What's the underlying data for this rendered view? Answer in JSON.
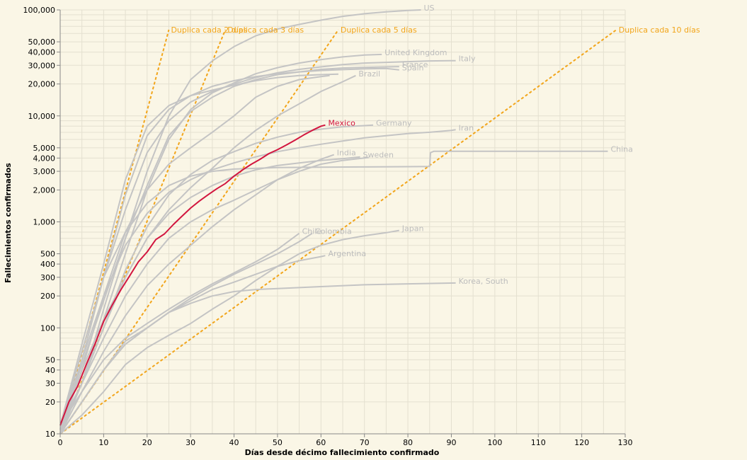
{
  "chart_data": {
    "type": "line",
    "xlabel": "Días desde décimo fallecimiento confirmado",
    "ylabel": "Fallecimientos confirmados",
    "x_scale": "linear",
    "y_scale": "log",
    "xlim": [
      0,
      130
    ],
    "ylim": [
      10,
      100000
    ],
    "x_ticks": [
      0,
      10,
      20,
      30,
      40,
      50,
      60,
      70,
      80,
      90,
      100,
      110,
      120,
      130
    ],
    "x_tick_labels": [
      "0",
      "10",
      "20",
      "30",
      "40",
      "50",
      "60",
      "70",
      "80",
      "90",
      "100",
      "110",
      "120",
      "130"
    ],
    "y_ticks": [
      10,
      20,
      30,
      40,
      50,
      100,
      200,
      300,
      400,
      500,
      1000,
      2000,
      3000,
      4000,
      5000,
      10000,
      20000,
      30000,
      40000,
      50000,
      100000
    ],
    "y_tick_labels": [
      "10",
      "20",
      "30",
      "40",
      "50",
      "100",
      "200",
      "300",
      "400",
      "500",
      "1,000",
      "2,000",
      "3,000",
      "4,000",
      "5,000",
      "10,000",
      "20,000",
      "30,000",
      "40,000",
      "50,000",
      "100,000"
    ],
    "grid": true,
    "colors": {
      "background": "#faf6e6",
      "gray_series": "#c4c4c4",
      "gray_label": "#bdbdbd",
      "highlight": "#d2163f",
      "reference": "#f2a51a",
      "grid": "#e4e0d0"
    },
    "reference_lines": [
      {
        "name": "Duplica cada 2 días",
        "x": [
          0,
          25
        ],
        "y": [
          10,
          65000
        ]
      },
      {
        "name": "Duplica cada 3 días",
        "x": [
          0,
          38
        ],
        "y": [
          10,
          65000
        ]
      },
      {
        "name": "Duplica cada 5 días",
        "x": [
          0,
          64
        ],
        "y": [
          10,
          65000
        ]
      },
      {
        "name": "Duplica cada 10 días",
        "x": [
          0,
          128
        ],
        "y": [
          10,
          65000
        ]
      }
    ],
    "series": [
      {
        "name": "US",
        "highlight": false,
        "x": [
          0,
          5,
          10,
          15,
          20,
          25,
          30,
          35,
          40,
          45,
          50,
          55,
          60,
          65,
          70,
          75,
          80,
          83
        ],
        "y": [
          11,
          30,
          150,
          700,
          3000,
          10000,
          22000,
          33000,
          45000,
          57000,
          66000,
          73000,
          80000,
          87000,
          92000,
          96000,
          99000,
          100000
        ]
      },
      {
        "name": "United Kingdom",
        "highlight": false,
        "x": [
          0,
          5,
          10,
          15,
          20,
          25,
          30,
          35,
          40,
          45,
          50,
          55,
          60,
          65,
          70,
          74
        ],
        "y": [
          10,
          30,
          120,
          500,
          2000,
          6000,
          11500,
          16500,
          20500,
          25000,
          28500,
          31500,
          34000,
          36000,
          37500,
          38000
        ]
      },
      {
        "name": "Italy",
        "highlight": false,
        "x": [
          0,
          5,
          10,
          15,
          20,
          25,
          30,
          35,
          40,
          45,
          50,
          55,
          60,
          65,
          70,
          75,
          80,
          85,
          91
        ],
        "y": [
          12,
          60,
          300,
          1300,
          4500,
          9000,
          13500,
          17000,
          20000,
          23000,
          25500,
          27500,
          29000,
          30500,
          31500,
          32000,
          32500,
          33000,
          33200
        ]
      },
      {
        "name": "France",
        "highlight": false,
        "x": [
          0,
          5,
          10,
          15,
          20,
          25,
          30,
          35,
          40,
          45,
          50,
          55,
          60,
          65,
          70,
          75,
          78
        ],
        "y": [
          11,
          45,
          180,
          700,
          2200,
          6500,
          11000,
          15000,
          19000,
          22000,
          24500,
          26000,
          27500,
          28300,
          28700,
          29000,
          29200
        ]
      },
      {
        "name": "Spain",
        "highlight": false,
        "x": [
          0,
          5,
          10,
          15,
          20,
          25,
          30,
          35,
          40,
          45,
          50,
          55,
          60,
          65,
          70,
          75,
          78
        ],
        "y": [
          10,
          50,
          300,
          1800,
          6500,
          11500,
          15500,
          19000,
          21500,
          23500,
          25000,
          26000,
          26800,
          27300,
          27800,
          28000,
          27200
        ]
      },
      {
        "name": "Brazil",
        "highlight": false,
        "x": [
          0,
          5,
          10,
          15,
          20,
          25,
          30,
          35,
          40,
          45,
          50,
          55,
          60,
          65,
          68
        ],
        "y": [
          11,
          40,
          120,
          300,
          700,
          1300,
          2100,
          3200,
          5000,
          7300,
          10000,
          13000,
          17000,
          21000,
          24000
        ]
      },
      {
        "name": "Mexico",
        "highlight": true,
        "x": [
          0,
          2,
          4,
          6,
          8,
          10,
          12,
          14,
          16,
          18,
          20,
          22,
          24,
          26,
          28,
          30,
          32,
          34,
          36,
          38,
          40,
          42,
          44,
          46,
          48,
          50,
          52,
          54,
          56,
          58,
          60,
          61
        ],
        "y": [
          12,
          20,
          28,
          45,
          70,
          115,
          165,
          230,
          310,
          420,
          520,
          680,
          770,
          940,
          1130,
          1350,
          1570,
          1800,
          2050,
          2300,
          2700,
          3100,
          3500,
          3900,
          4400,
          4800,
          5300,
          5900,
          6600,
          7300,
          8000,
          8200
        ]
      },
      {
        "name": "Germany",
        "highlight": false,
        "x": [
          0,
          5,
          10,
          15,
          20,
          25,
          30,
          35,
          40,
          45,
          50,
          55,
          60,
          65,
          70,
          72
        ],
        "y": [
          12,
          30,
          100,
          350,
          900,
          1800,
          2800,
          3800,
          4600,
          5500,
          6300,
          7000,
          7500,
          7900,
          8100,
          8200
        ]
      },
      {
        "name": "Iran",
        "highlight": false,
        "x": [
          0,
          5,
          10,
          15,
          20,
          25,
          30,
          35,
          40,
          45,
          50,
          55,
          60,
          65,
          70,
          75,
          80,
          85,
          90,
          91
        ],
        "y": [
          12,
          50,
          200,
          600,
          1200,
          1900,
          2500,
          3100,
          3600,
          4100,
          4600,
          5000,
          5400,
          5800,
          6200,
          6500,
          6800,
          7000,
          7300,
          7400
        ]
      },
      {
        "name": "China",
        "highlight": false,
        "x": [
          0,
          5,
          10,
          15,
          20,
          25,
          30,
          35,
          40,
          50,
          60,
          70,
          80,
          85,
          85.2,
          86,
          100,
          115,
          126
        ],
        "y": [
          12,
          60,
          300,
          800,
          1500,
          2200,
          2700,
          3000,
          3150,
          3250,
          3280,
          3300,
          3320,
          3330,
          4500,
          4640,
          4640,
          4640,
          4640
        ]
      },
      {
        "name": "India",
        "highlight": false,
        "x": [
          0,
          5,
          10,
          15,
          20,
          25,
          30,
          35,
          40,
          45,
          50,
          55,
          60,
          63
        ],
        "y": [
          10,
          25,
          60,
          130,
          250,
          400,
          600,
          900,
          1300,
          1800,
          2500,
          3200,
          3900,
          4300
        ]
      },
      {
        "name": "Sweden",
        "highlight": false,
        "x": [
          0,
          5,
          10,
          15,
          20,
          25,
          30,
          35,
          40,
          45,
          50,
          55,
          60,
          65,
          69
        ],
        "y": [
          10,
          30,
          100,
          300,
          700,
          1200,
          1700,
          2200,
          2700,
          3100,
          3400,
          3600,
          3800,
          3950,
          4100
        ]
      },
      {
        "name": "Chile",
        "highlight": false,
        "x": [
          0,
          5,
          10,
          15,
          20,
          25,
          30,
          35,
          40,
          45,
          50,
          55
        ],
        "y": [
          12,
          25,
          50,
          80,
          110,
          150,
          200,
          260,
          330,
          420,
          550,
          780
        ]
      },
      {
        "name": "Colombia",
        "highlight": false,
        "x": [
          0,
          5,
          10,
          15,
          20,
          25,
          30,
          35,
          40,
          45,
          50,
          55,
          58
        ],
        "y": [
          10,
          20,
          40,
          70,
          100,
          140,
          190,
          250,
          320,
          400,
          500,
          650,
          780
        ]
      },
      {
        "name": "Japan",
        "highlight": false,
        "x": [
          0,
          5,
          10,
          15,
          20,
          25,
          30,
          35,
          40,
          45,
          50,
          55,
          60,
          65,
          70,
          75,
          78
        ],
        "y": [
          10,
          15,
          25,
          45,
          65,
          85,
          110,
          150,
          200,
          280,
          380,
          500,
          600,
          680,
          740,
          790,
          830
        ]
      },
      {
        "name": "Argentina",
        "highlight": false,
        "x": [
          0,
          5,
          10,
          15,
          20,
          25,
          30,
          35,
          40,
          45,
          50,
          55,
          60,
          61
        ],
        "y": [
          10,
          20,
          40,
          70,
          100,
          140,
          180,
          230,
          270,
          320,
          380,
          430,
          470,
          480
        ]
      },
      {
        "name": "Korea, South",
        "highlight": false,
        "x": [
          0,
          5,
          10,
          15,
          20,
          25,
          30,
          35,
          40,
          45,
          50,
          60,
          70,
          80,
          91
        ],
        "y": [
          10,
          20,
          40,
          75,
          100,
          140,
          170,
          200,
          220,
          230,
          235,
          245,
          255,
          260,
          265
        ]
      },
      {
        "name": "",
        "highlight": false,
        "x": [
          0,
          5,
          10,
          15,
          20,
          25,
          30,
          35,
          40,
          45,
          50,
          55,
          60,
          64
        ],
        "y": [
          12,
          70,
          400,
          2500,
          8000,
          12500,
          15500,
          17500,
          19500,
          21500,
          23000,
          24000,
          24500,
          24800
        ]
      },
      {
        "name": "",
        "highlight": false,
        "x": [
          0,
          5,
          10,
          15,
          20,
          25,
          30,
          35,
          40,
          45,
          50,
          55,
          60,
          62
        ],
        "y": [
          10,
          40,
          200,
          800,
          2000,
          3500,
          5000,
          7000,
          10000,
          15000,
          19000,
          22000,
          23500,
          24000
        ]
      },
      {
        "name": "",
        "highlight": false,
        "x": [
          0,
          5,
          10,
          15,
          20,
          25,
          30,
          35,
          40,
          45,
          50,
          55,
          60,
          65,
          70,
          71
        ],
        "y": [
          10,
          30,
          80,
          200,
          400,
          700,
          1000,
          1300,
          1600,
          2000,
          2500,
          3000,
          3500,
          3800,
          4000,
          4050
        ]
      }
    ]
  }
}
